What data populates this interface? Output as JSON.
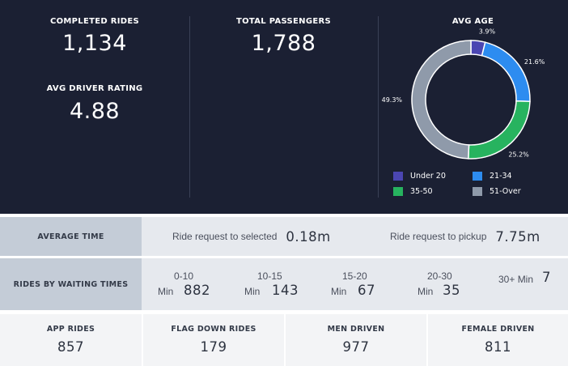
{
  "summary": {
    "completed_rides": {
      "label": "COMPLETED RIDES",
      "value": "1,134"
    },
    "total_passengers": {
      "label": "TOTAL PASSENGERS",
      "value": "1,788"
    },
    "avg_driver_rating": {
      "label": "AVG DRIVER RATING",
      "value": "4.88"
    }
  },
  "avg_age": {
    "title": "AVG AGE",
    "slices": [
      {
        "name": "Under 20",
        "value": 3.9,
        "label": "3.9%",
        "color": "#4b46b2"
      },
      {
        "name": "21-34",
        "value": 21.6,
        "label": "21.6%",
        "color": "#2d8cf0"
      },
      {
        "name": "35-50",
        "value": 25.2,
        "label": "25.2%",
        "color": "#27b35f"
      },
      {
        "name": "51-Over",
        "value": 49.3,
        "label": "49.3%",
        "color": "#8f9aaa"
      }
    ]
  },
  "chart_data": {
    "type": "pie",
    "title": "AVG AGE",
    "categories": [
      "Under 20",
      "21-34",
      "35-50",
      "51-Over"
    ],
    "values": [
      3.9,
      21.6,
      25.2,
      49.3
    ],
    "legend": "bottom"
  },
  "average_time": {
    "label": "AVERAGE TIME",
    "items": [
      {
        "text": "Ride request to selected",
        "value": "0.18m"
      },
      {
        "text": "Ride request to pickup",
        "value": "7.75m"
      }
    ]
  },
  "waiting_times": {
    "label": "RIDES BY WAITING TIMES",
    "items": [
      {
        "range": "0-10",
        "unit": "Min",
        "value": "882"
      },
      {
        "range": "10-15",
        "unit": "Min",
        "value": "143"
      },
      {
        "range": "15-20",
        "unit": "Min",
        "value": "67"
      },
      {
        "range": "20-30",
        "unit": "Min",
        "value": "35"
      },
      {
        "range": "30+ Min",
        "unit": "",
        "value": "7"
      }
    ]
  },
  "bottom_stats": [
    {
      "label": "APP RIDES",
      "value": "857"
    },
    {
      "label": "FLAG DOWN RIDES",
      "value": "179"
    },
    {
      "label": "MEN DRIVEN",
      "value": "977"
    },
    {
      "label": "FEMALE DRIVEN",
      "value": "811"
    }
  ]
}
